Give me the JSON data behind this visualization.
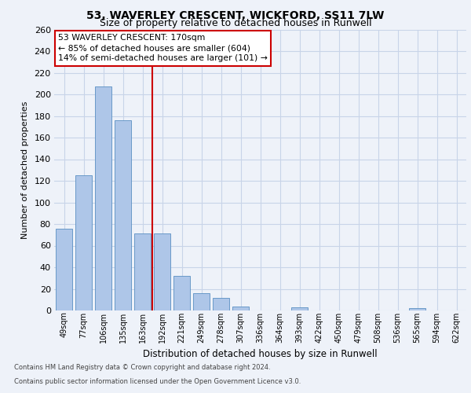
{
  "title1": "53, WAVERLEY CRESCENT, WICKFORD, SS11 7LW",
  "title2": "Size of property relative to detached houses in Runwell",
  "xlabel": "Distribution of detached houses by size in Runwell",
  "ylabel": "Number of detached properties",
  "categories": [
    "49sqm",
    "77sqm",
    "106sqm",
    "135sqm",
    "163sqm",
    "192sqm",
    "221sqm",
    "249sqm",
    "278sqm",
    "307sqm",
    "336sqm",
    "364sqm",
    "393sqm",
    "422sqm",
    "450sqm",
    "479sqm",
    "508sqm",
    "536sqm",
    "565sqm",
    "594sqm",
    "622sqm"
  ],
  "values": [
    76,
    125,
    207,
    176,
    71,
    71,
    32,
    16,
    12,
    4,
    0,
    0,
    3,
    0,
    0,
    0,
    0,
    0,
    2,
    0,
    0
  ],
  "bar_color": "#aec6e8",
  "bar_edge_color": "#5a8fc2",
  "vline_x_index": 4,
  "vline_color": "#cc0000",
  "annotation_text": "53 WAVERLEY CRESCENT: 170sqm\n← 85% of detached houses are smaller (604)\n14% of semi-detached houses are larger (101) →",
  "annotation_box_color": "#ffffff",
  "annotation_box_edge": "#cc0000",
  "ylim": [
    0,
    260
  ],
  "yticks": [
    0,
    20,
    40,
    60,
    80,
    100,
    120,
    140,
    160,
    180,
    200,
    220,
    240,
    260
  ],
  "footer1": "Contains HM Land Registry data © Crown copyright and database right 2024.",
  "footer2": "Contains public sector information licensed under the Open Government Licence v3.0.",
  "bg_color": "#eef2f9",
  "plot_bg_color": "#eef2f9",
  "grid_color": "#c8d4e8",
  "title1_fontsize": 10,
  "title2_fontsize": 9
}
